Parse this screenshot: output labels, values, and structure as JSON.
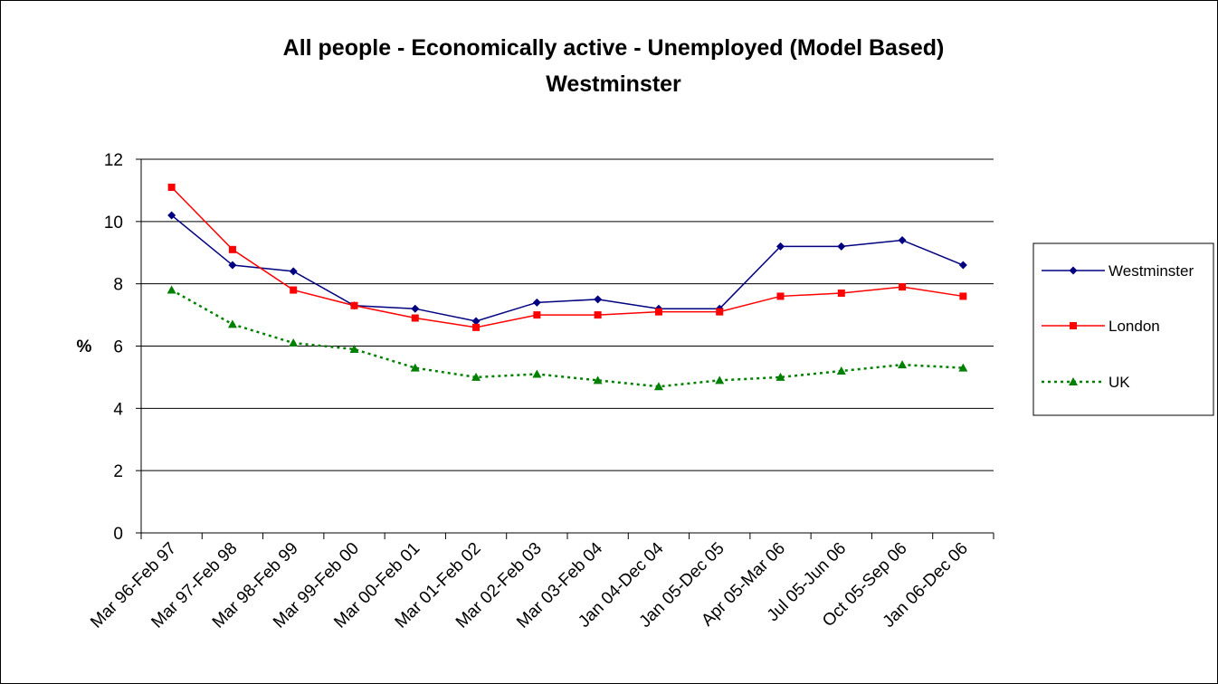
{
  "chart_data": {
    "type": "line",
    "title": "All people - Economically active - Unemployed (Model Based)",
    "subtitle": "Westminster",
    "xlabel": "",
    "ylabel": "%",
    "ylim": [
      0,
      12
    ],
    "yticks": [
      "0",
      "2",
      "4",
      "6",
      "8",
      "10",
      "12"
    ],
    "grid": true,
    "legend_position": "right",
    "categories": [
      "Mar 96-Feb 97",
      "Mar 97-Feb 98",
      "Mar 98-Feb 99",
      "Mar 99-Feb 00",
      "Mar 00-Feb 01",
      "Mar 01-Feb 02",
      "Mar 02-Feb 03",
      "Mar 03-Feb 04",
      "Jan 04-Dec 04",
      "Jan 05-Dec 05",
      "Apr 05-Mar 06",
      "Jul 05-Jun 06",
      "Oct 05-Sep 06",
      "Jan 06-Dec 06"
    ],
    "series": [
      {
        "name": "Westminster",
        "color": "#000080",
        "marker": "diamond",
        "line_style": "solid",
        "values": [
          10.2,
          8.6,
          8.4,
          7.3,
          7.2,
          6.8,
          7.4,
          7.5,
          7.2,
          7.2,
          9.2,
          9.2,
          9.4,
          8.6
        ]
      },
      {
        "name": "London",
        "color": "#ff0000",
        "marker": "square",
        "line_style": "solid",
        "values": [
          11.1,
          9.1,
          7.8,
          7.3,
          6.9,
          6.6,
          7.0,
          7.0,
          7.1,
          7.1,
          7.6,
          7.7,
          7.9,
          7.6
        ]
      },
      {
        "name": "UK",
        "color": "#008000",
        "marker": "triangle",
        "line_style": "dotted",
        "values": [
          7.8,
          6.7,
          6.1,
          5.9,
          5.3,
          5.0,
          5.1,
          4.9,
          4.7,
          4.9,
          5.0,
          5.2,
          5.4,
          5.3
        ]
      }
    ]
  }
}
